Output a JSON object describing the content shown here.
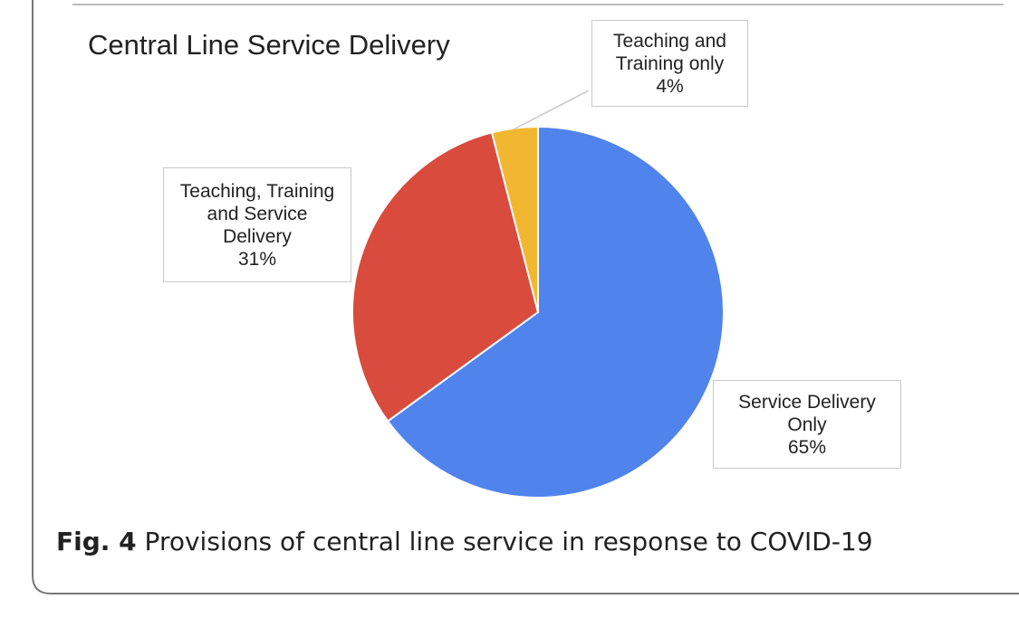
{
  "chart_data": {
    "type": "pie",
    "title": "Central Line Service Delivery",
    "categories": [
      "Service Delivery Only",
      "Teaching, Training and Service Delivery",
      "Teaching and Training only"
    ],
    "values": [
      65,
      31,
      4
    ],
    "value_labels": [
      "65%",
      "31%",
      "4%"
    ],
    "colors": [
      "#5083ec",
      "#d94b3c",
      "#f2b731"
    ]
  },
  "caption": {
    "label": "Fig. 4",
    "text": "Provisions of central line service in response to COVID-19"
  }
}
